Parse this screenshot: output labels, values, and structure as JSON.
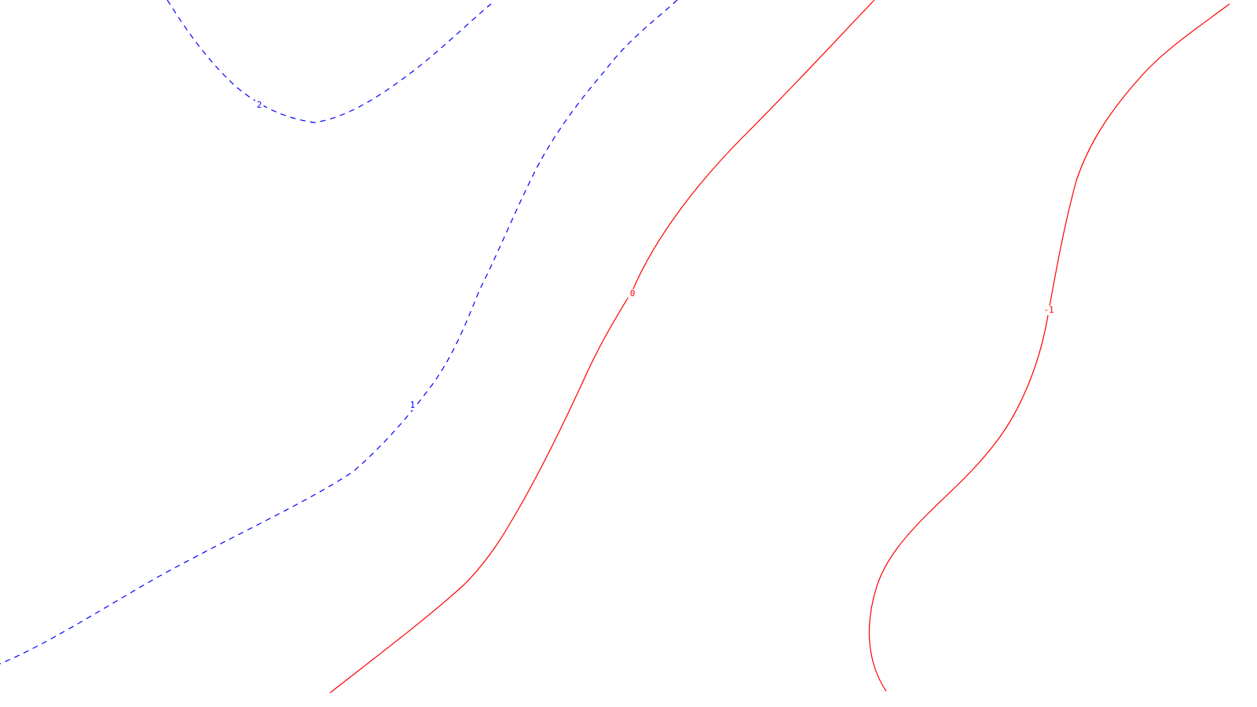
{
  "chart_data": {
    "type": "contour",
    "levels": [
      {
        "level": 2,
        "label": "2",
        "style": "dashed",
        "color": "#0000ff"
      },
      {
        "level": 1,
        "label": "1",
        "style": "dashed",
        "color": "#0000ff"
      },
      {
        "level": 0,
        "label": "0",
        "style": "solid",
        "color": "#ff0000"
      },
      {
        "level": -1,
        "label": "-1",
        "style": "solid",
        "color": "#ff0000"
      }
    ],
    "negative_color": "#ff0000",
    "positive_color": "#0000ff",
    "grid": false,
    "axes": false
  }
}
